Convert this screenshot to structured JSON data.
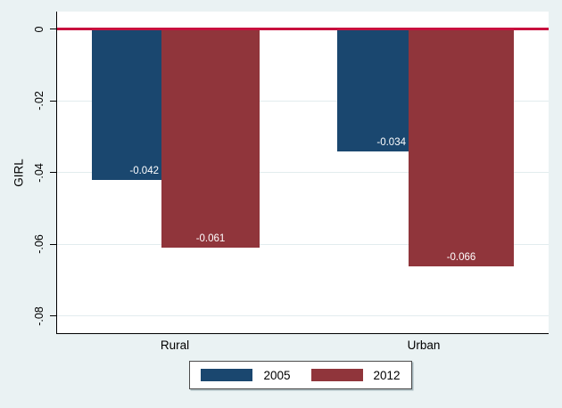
{
  "chart_data": {
    "type": "bar",
    "title": "",
    "xlabel": "",
    "ylabel": "GIRL",
    "categories": [
      "Rural",
      "Urban"
    ],
    "series": [
      {
        "name": "2005",
        "color": "#1a476f",
        "values": [
          -0.042,
          -0.034
        ],
        "labels": [
          "-0.042",
          "-0.034"
        ]
      },
      {
        "name": "2012",
        "color": "#90353b",
        "values": [
          -0.061,
          -0.066
        ],
        "labels": [
          "-0.061",
          "-0.066"
        ]
      }
    ],
    "y_ticks": [
      {
        "value": 0,
        "label": "0"
      },
      {
        "value": -0.02,
        "label": "-.02"
      },
      {
        "value": -0.04,
        "label": "-.04"
      },
      {
        "value": -0.06,
        "label": "-.06"
      },
      {
        "value": -0.08,
        "label": "-.08"
      }
    ],
    "ylim": [
      -0.085,
      0.005
    ],
    "grid": true,
    "legend_position": "bottom",
    "refline": {
      "y": 0,
      "color": "#c8103e"
    }
  },
  "colors": {
    "background": "#eaf2f3",
    "plot_background": "#ffffff",
    "gridline": "#e2ecee",
    "axis": "#000000",
    "bar_label_text": "#ffffff"
  }
}
